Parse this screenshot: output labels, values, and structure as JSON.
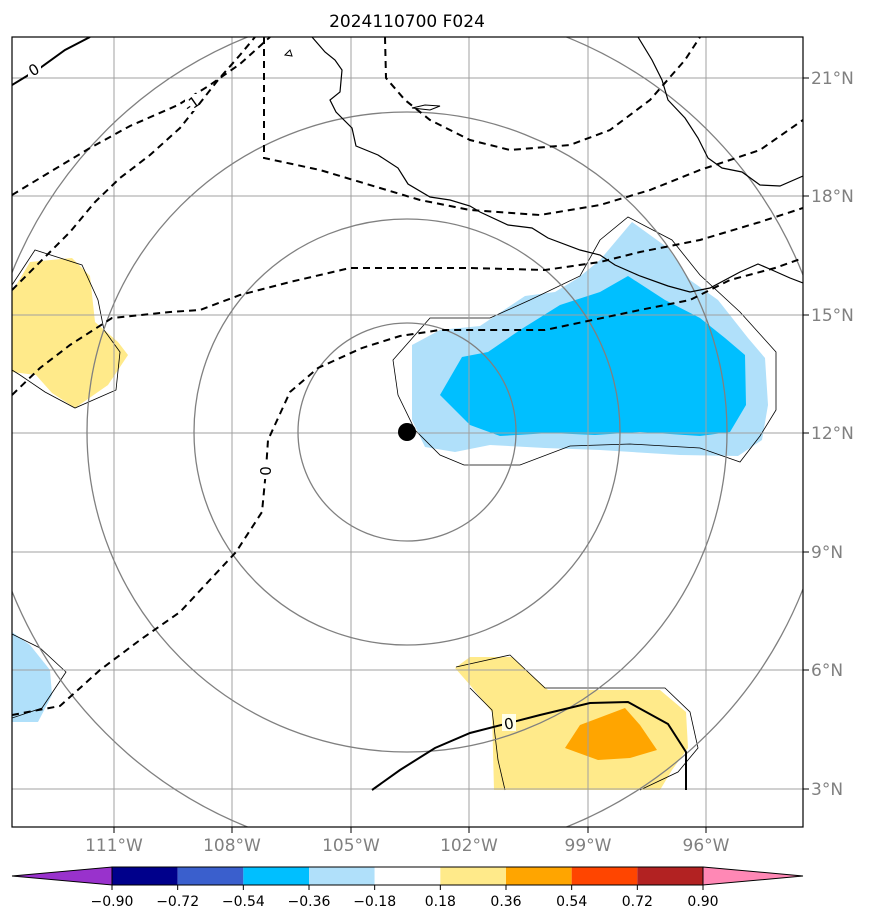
{
  "title": "2024110700 F024",
  "map": {
    "lon_labels": [
      "111°W",
      "108°W",
      "105°W",
      "102°W",
      "99°W",
      "96°W"
    ],
    "lat_labels": [
      "21°N",
      "18°N",
      "15°N",
      "12°N",
      "9°N",
      "6°N",
      "3°N"
    ],
    "gridline_color": "#a0a0a0",
    "label_color": "#808080",
    "storm_center": {
      "lon": "103.6°W",
      "lat": "12.0°N"
    },
    "contour_labels": [
      "0",
      "-1",
      "0",
      "0"
    ]
  },
  "colorbar": {
    "ticks": [
      "−0.90",
      "−0.72",
      "−0.54",
      "−0.36",
      "−0.18",
      "0.18",
      "0.36",
      "0.54",
      "0.72",
      "0.90"
    ],
    "colors": [
      "#9932cc",
      "#00008b",
      "#3a5fcd",
      "#00bfff",
      "#b0e0fa",
      "#ffffff",
      "#ffea8a",
      "#ffa500",
      "#ff4500",
      "#b22222",
      "#ff88b5"
    ]
  }
}
